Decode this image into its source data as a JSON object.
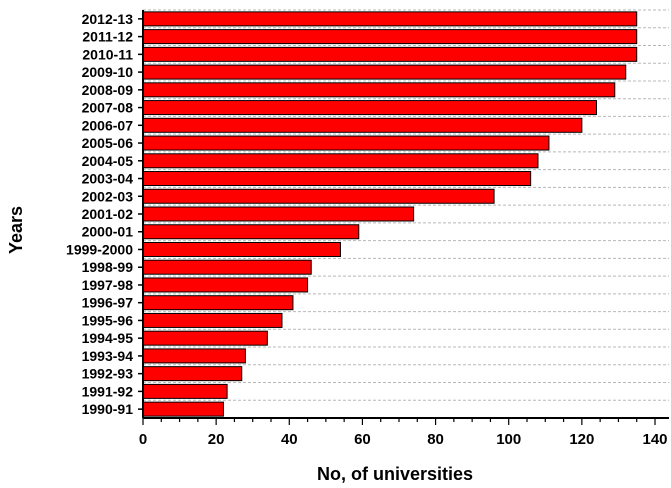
{
  "chart_data": {
    "type": "bar",
    "orientation": "horizontal",
    "categories": [
      "2012-13",
      "2011-12",
      "2010-11",
      "2009-10",
      "2008-09",
      "2007-08",
      "2006-07",
      "2005-06",
      "2004-05",
      "2003-04",
      "2002-03",
      "2001-02",
      "2000-01",
      "1999-2000",
      "1998-99",
      "1997-98",
      "1996-97",
      "1995-96",
      "1994-95",
      "1993-94",
      "1992-93",
      "1991-92",
      "1990-91"
    ],
    "values": [
      135,
      135,
      135,
      132,
      129,
      124,
      120,
      111,
      108,
      106,
      96,
      74,
      59,
      54,
      46,
      45,
      41,
      38,
      34,
      28,
      27,
      23,
      22
    ],
    "xlabel": "No, of universities",
    "ylabel": "Years",
    "xlim": [
      0,
      140
    ],
    "xticks": [
      0,
      20,
      40,
      60,
      80,
      100,
      120,
      140
    ],
    "bar_color": "#ff0000",
    "grid": "horizontal dashed",
    "legend": "none"
  }
}
